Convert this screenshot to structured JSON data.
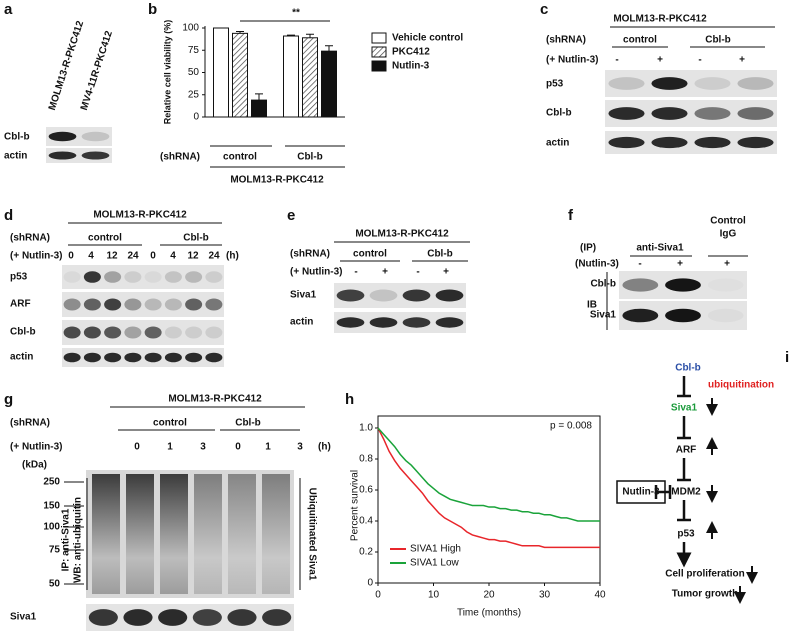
{
  "panels": {
    "a": {
      "letter": "a",
      "columns": [
        "MOLM13-R-PKC412",
        "MV4-11R-PKC412"
      ],
      "rows": [
        "Cbl-b",
        "actin"
      ]
    },
    "b": {
      "letter": "b"
    },
    "c": {
      "letter": "c",
      "cell_line": "MOLM13-R-PKC412",
      "shrna_label": "(shRNA)",
      "groups": [
        "control",
        "Cbl-b"
      ],
      "treatment_label": "(+ Nutlin-3)",
      "treatment": [
        "-",
        "+",
        "-",
        "+"
      ],
      "rows": [
        "p53",
        "Cbl-b",
        "actin"
      ]
    },
    "d": {
      "letter": "d",
      "cell_line": "MOLM13-R-PKC412",
      "shrna_label": "(shRNA)",
      "groups": [
        "control",
        "Cbl-b"
      ],
      "treatment_label": "(+ Nutlin-3)",
      "treatment": [
        "0",
        "4",
        "12",
        "24",
        "0",
        "4",
        "12",
        "24"
      ],
      "unit": "(h)",
      "rows": [
        "p53",
        "ARF",
        "Cbl-b",
        "actin"
      ]
    },
    "e": {
      "letter": "e",
      "cell_line": "MOLM13-R-PKC412",
      "shrna_label": "(shRNA)",
      "groups": [
        "control",
        "Cbl-b"
      ],
      "treatment_label": "(+ Nutlin-3)",
      "treatment": [
        "-",
        "+",
        "-",
        "+"
      ],
      "rows": [
        "Siva1",
        "actin"
      ]
    },
    "f": {
      "letter": "f",
      "ip_label": "(IP)",
      "groups": [
        "anti-Siva1",
        [
          "Control",
          "IgG"
        ]
      ],
      "treatment_label": "(Nutlin-3)",
      "treatment": [
        "-",
        "+",
        "+"
      ],
      "ib_label": "IB",
      "rows": [
        "Cbl-b",
        "Siva1"
      ]
    },
    "g": {
      "letter": "g",
      "cell_line": "MOLM13-R-PKC412",
      "shrna_label": "(shRNA)",
      "groups": [
        "control",
        "Cbl-b"
      ],
      "treatment_label": "(+ Nutlin-3)",
      "treatment": [
        "0",
        "1",
        "3",
        "0",
        "1",
        "3"
      ],
      "unit": "(h)",
      "kda_label": "(kDa)",
      "markers": [
        "250",
        "150",
        "100",
        "75",
        "50"
      ],
      "left_label": [
        "IP: anti-Siva1",
        "WB: anti-ubiquitin"
      ],
      "right_label": "Ubiquitinated Siva1",
      "bottom_row": "Siva1"
    },
    "h": {
      "letter": "h"
    },
    "i": {
      "letter": "i",
      "nodes": [
        "Cbl-b",
        "ubiquitination",
        "Siva1",
        "ARF",
        "Nutlin-3",
        "MDM2",
        "p53",
        "Cell proliferation",
        "Tumor growth"
      ]
    }
  },
  "chart_data": [
    {
      "type": "bar",
      "y_label": "Relative cell viability (%)",
      "x_label": "(shRNA)",
      "group_label": "MOLM13-R-PKC412",
      "annotation": "**",
      "categories": [
        "control",
        "Cbl-b"
      ],
      "series": [
        {
          "name": "Vehicle control",
          "color": "#ffffff",
          "values": [
            100,
            91
          ],
          "errors": [
            0,
            1
          ]
        },
        {
          "name": "PKC412",
          "color": "#ffffff",
          "hatch": true,
          "values": [
            94,
            89
          ],
          "errors": [
            2,
            4
          ]
        },
        {
          "name": "Nutlin-3",
          "color": "#111111",
          "values": [
            19,
            74
          ],
          "errors": [
            7,
            6
          ]
        }
      ],
      "ylim": [
        0,
        100
      ],
      "yticks": [
        0,
        25,
        50,
        75,
        100
      ],
      "legend": "upper right"
    },
    {
      "type": "line",
      "x_label": "Time (months)",
      "y_label": "Percent survival",
      "annotation": "p = 0.008",
      "x": [
        0,
        1,
        2,
        3,
        4,
        5,
        6,
        7,
        8,
        9,
        10,
        11,
        12,
        13,
        14,
        15,
        16,
        17,
        18,
        19,
        20,
        21,
        22,
        23,
        24,
        25,
        26,
        27,
        28,
        29,
        30,
        31,
        32,
        33,
        34,
        35,
        36,
        37,
        38,
        39,
        40
      ],
      "series": [
        {
          "name": "SIVA1 High",
          "color": "#e8262b",
          "values": [
            1,
            0.93,
            0.85,
            0.79,
            0.74,
            0.7,
            0.66,
            0.62,
            0.58,
            0.53,
            0.49,
            0.45,
            0.42,
            0.4,
            0.38,
            0.36,
            0.33,
            0.31,
            0.3,
            0.29,
            0.28,
            0.28,
            0.27,
            0.27,
            0.26,
            0.25,
            0.24,
            0.24,
            0.24,
            0.24,
            0.23,
            0.23,
            0.23,
            0.23,
            0.23,
            0.23,
            0.23,
            0.23,
            0.23,
            0.23,
            0.23
          ]
        },
        {
          "name": "SIVA1 Low",
          "color": "#1aa33a",
          "values": [
            1,
            0.96,
            0.92,
            0.88,
            0.83,
            0.79,
            0.76,
            0.72,
            0.68,
            0.64,
            0.61,
            0.58,
            0.56,
            0.54,
            0.53,
            0.52,
            0.51,
            0.5,
            0.5,
            0.5,
            0.49,
            0.49,
            0.48,
            0.48,
            0.47,
            0.47,
            0.46,
            0.46,
            0.45,
            0.45,
            0.44,
            0.44,
            0.43,
            0.42,
            0.42,
            0.41,
            0.4,
            0.4,
            0.4,
            0.4,
            0.4
          ]
        }
      ],
      "xlim": [
        0,
        40
      ],
      "xticks": [
        0,
        10,
        20,
        30,
        40
      ],
      "ylim": [
        0,
        1
      ],
      "yticks": [
        0,
        0.2,
        0.4,
        0.6,
        0.8,
        {
          "value": 1,
          "label": "1.0"
        }
      ],
      "legend": "lower left"
    }
  ]
}
